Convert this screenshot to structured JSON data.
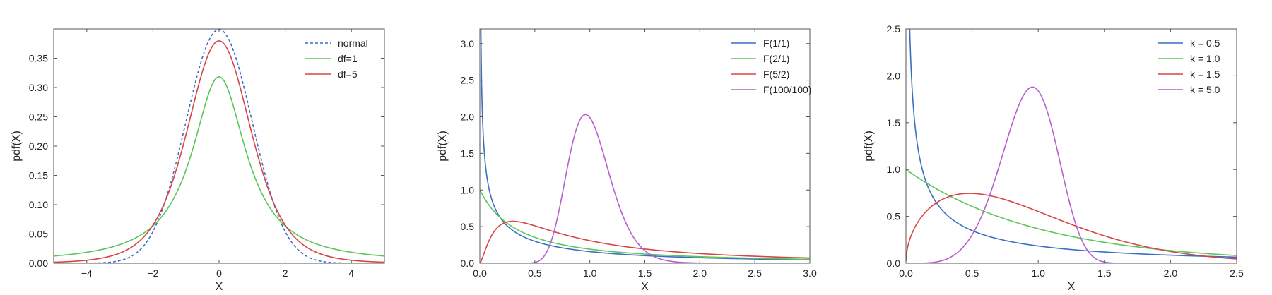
{
  "chart_data": [
    {
      "type": "line",
      "title": "",
      "xlabel": "X",
      "ylabel": "pdf(X)",
      "xlim": [
        -5,
        5
      ],
      "ylim": [
        0,
        0.4
      ],
      "xticks": [
        -4,
        -2,
        0,
        2,
        4
      ],
      "xtick_labels": [
        "−4",
        "−2",
        "0",
        "2",
        "4"
      ],
      "yticks": [
        0.0,
        0.05,
        0.1,
        0.15,
        0.2,
        0.25,
        0.3,
        0.35
      ],
      "ytick_labels": [
        "0.00",
        "0.05",
        "0.10",
        "0.15",
        "0.20",
        "0.25",
        "0.30",
        "0.35"
      ],
      "grid": false,
      "legend_position": "top-right",
      "distribution": "t",
      "series": [
        {
          "name": "normal",
          "color": "#3a6fc4",
          "dashed": true,
          "params": {
            "df": null
          }
        },
        {
          "name": "df=1",
          "color": "#5ac65a",
          "dashed": false,
          "params": {
            "df": 1
          }
        },
        {
          "name": "df=5",
          "color": "#d64545",
          "dashed": false,
          "params": {
            "df": 5
          }
        }
      ]
    },
    {
      "type": "line",
      "title": "",
      "xlabel": "X",
      "ylabel": "pdf(X)",
      "xlim": [
        0,
        3
      ],
      "ylim": [
        0,
        3.2
      ],
      "xticks": [
        0,
        0.5,
        1.0,
        1.5,
        2.0,
        2.5,
        3.0
      ],
      "xtick_labels": [
        "0.0",
        "0.5",
        "1.0",
        "1.5",
        "2.0",
        "2.5",
        "3.0"
      ],
      "yticks": [
        0,
        0.5,
        1.0,
        1.5,
        2.0,
        2.5,
        3.0
      ],
      "ytick_labels": [
        "0.0",
        "0.5",
        "1.0",
        "1.5",
        "2.0",
        "2.5",
        "3.0"
      ],
      "grid": false,
      "legend_position": "top-right",
      "distribution": "f",
      "series": [
        {
          "name": "F(1/1)",
          "color": "#3a6fc4",
          "dashed": false,
          "params": {
            "d1": 1,
            "d2": 1
          }
        },
        {
          "name": "F(2/1)",
          "color": "#5ac65a",
          "dashed": false,
          "params": {
            "d1": 2,
            "d2": 1
          }
        },
        {
          "name": "F(5/2)",
          "color": "#d64545",
          "dashed": false,
          "params": {
            "d1": 5,
            "d2": 2
          }
        },
        {
          "name": "F(100/100)",
          "color": "#b65fcf",
          "dashed": false,
          "params": {
            "d1": 100,
            "d2": 100
          }
        }
      ]
    },
    {
      "type": "line",
      "title": "",
      "xlabel": "X",
      "ylabel": "pdf(X)",
      "xlim": [
        0,
        2.5
      ],
      "ylim": [
        0,
        2.5
      ],
      "xticks": [
        0,
        0.5,
        1.0,
        1.5,
        2.0,
        2.5
      ],
      "xtick_labels": [
        "0.0",
        "0.5",
        "1.0",
        "1.5",
        "2.0",
        "2.5"
      ],
      "yticks": [
        0,
        0.5,
        1.0,
        1.5,
        2.0,
        2.5
      ],
      "ytick_labels": [
        "0.0",
        "0.5",
        "1.0",
        "1.5",
        "2.0",
        "2.5"
      ],
      "grid": false,
      "legend_position": "top-right",
      "distribution": "weibull",
      "series": [
        {
          "name": "k = 0.5",
          "color": "#3a6fc4",
          "dashed": false,
          "params": {
            "k": 0.5
          }
        },
        {
          "name": "k = 1.0",
          "color": "#5ac65a",
          "dashed": false,
          "params": {
            "k": 1.0
          }
        },
        {
          "name": "k = 1.5",
          "color": "#d64545",
          "dashed": false,
          "params": {
            "k": 1.5
          }
        },
        {
          "name": "k = 5.0",
          "color": "#b65fcf",
          "dashed": false,
          "params": {
            "k": 5.0
          }
        }
      ]
    }
  ]
}
